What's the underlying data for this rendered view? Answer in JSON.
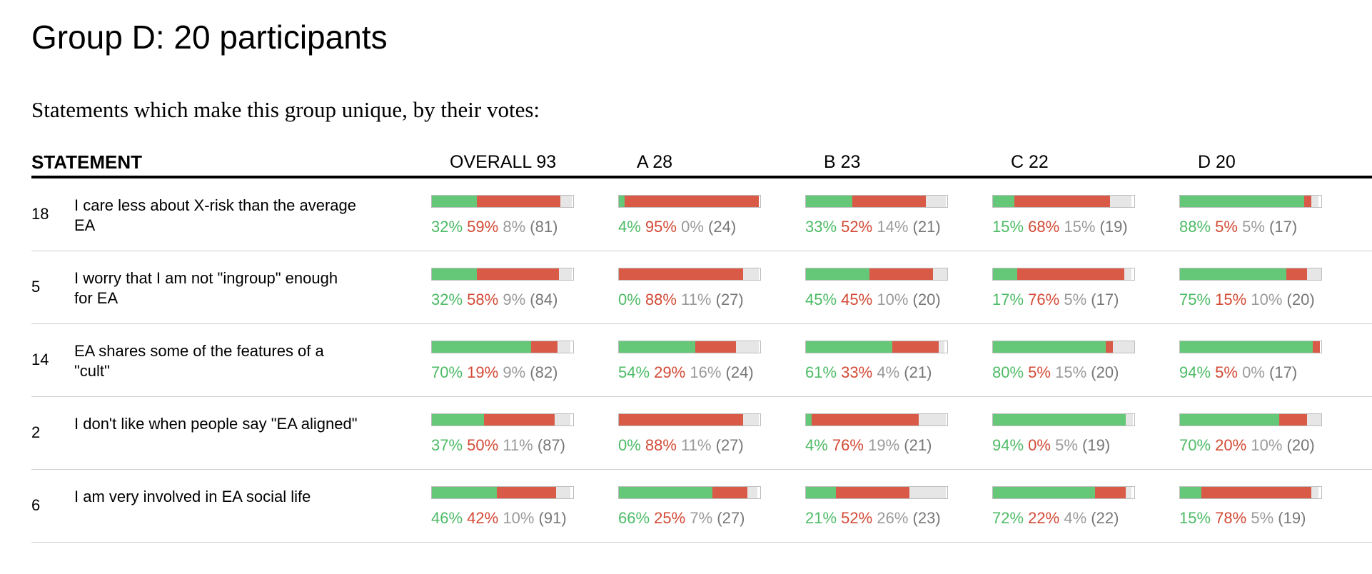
{
  "page": {
    "title": "Group D: 20 participants",
    "subtitle": "Statements which make this group unique, by their votes:"
  },
  "colors": {
    "agree": "#65c879",
    "disagree": "#d95a47",
    "pass": "#e6e6e6"
  },
  "table": {
    "statement_header": "STATEMENT",
    "groups": [
      {
        "label": "OVERALL 93"
      },
      {
        "label": "A 28"
      },
      {
        "label": "B 23"
      },
      {
        "label": "C 22"
      },
      {
        "label": "D 20"
      }
    ],
    "rows": [
      {
        "id": "18",
        "text": "I care less about X-risk than the average EA",
        "cells": [
          {
            "agree": 32,
            "disagree": 59,
            "pass": 8,
            "count": "(81)"
          },
          {
            "agree": 4,
            "disagree": 95,
            "pass": 0,
            "count": "(24)"
          },
          {
            "agree": 33,
            "disagree": 52,
            "pass": 14,
            "count": "(21)"
          },
          {
            "agree": 15,
            "disagree": 68,
            "pass": 15,
            "count": "(19)"
          },
          {
            "agree": 88,
            "disagree": 5,
            "pass": 5,
            "count": "(17)"
          }
        ]
      },
      {
        "id": "5",
        "text": "I worry that I am not \"ingroup\" enough for EA",
        "cells": [
          {
            "agree": 32,
            "disagree": 58,
            "pass": 9,
            "count": "(84)"
          },
          {
            "agree": 0,
            "disagree": 88,
            "pass": 11,
            "count": "(27)"
          },
          {
            "agree": 45,
            "disagree": 45,
            "pass": 10,
            "count": "(20)"
          },
          {
            "agree": 17,
            "disagree": 76,
            "pass": 5,
            "count": "(17)"
          },
          {
            "agree": 75,
            "disagree": 15,
            "pass": 10,
            "count": "(20)"
          }
        ]
      },
      {
        "id": "14",
        "text": "EA shares some of the features of a \"cult\"",
        "cells": [
          {
            "agree": 70,
            "disagree": 19,
            "pass": 9,
            "count": "(82)"
          },
          {
            "agree": 54,
            "disagree": 29,
            "pass": 16,
            "count": "(24)"
          },
          {
            "agree": 61,
            "disagree": 33,
            "pass": 4,
            "count": "(21)"
          },
          {
            "agree": 80,
            "disagree": 5,
            "pass": 15,
            "count": "(20)"
          },
          {
            "agree": 94,
            "disagree": 5,
            "pass": 0,
            "count": "(17)"
          }
        ]
      },
      {
        "id": "2",
        "text": "I don't like when people say \"EA aligned\"",
        "cells": [
          {
            "agree": 37,
            "disagree": 50,
            "pass": 11,
            "count": "(87)"
          },
          {
            "agree": 0,
            "disagree": 88,
            "pass": 11,
            "count": "(27)"
          },
          {
            "agree": 4,
            "disagree": 76,
            "pass": 19,
            "count": "(21)"
          },
          {
            "agree": 94,
            "disagree": 0,
            "pass": 5,
            "count": "(19)"
          },
          {
            "agree": 70,
            "disagree": 20,
            "pass": 10,
            "count": "(20)"
          }
        ]
      },
      {
        "id": "6",
        "text": "I am very involved in EA social life",
        "cells": [
          {
            "agree": 46,
            "disagree": 42,
            "pass": 10,
            "count": "(91)"
          },
          {
            "agree": 66,
            "disagree": 25,
            "pass": 7,
            "count": "(27)"
          },
          {
            "agree": 21,
            "disagree": 52,
            "pass": 26,
            "count": "(23)"
          },
          {
            "agree": 72,
            "disagree": 22,
            "pass": 4,
            "count": "(22)"
          },
          {
            "agree": 15,
            "disagree": 78,
            "pass": 5,
            "count": "(19)"
          }
        ]
      }
    ]
  }
}
